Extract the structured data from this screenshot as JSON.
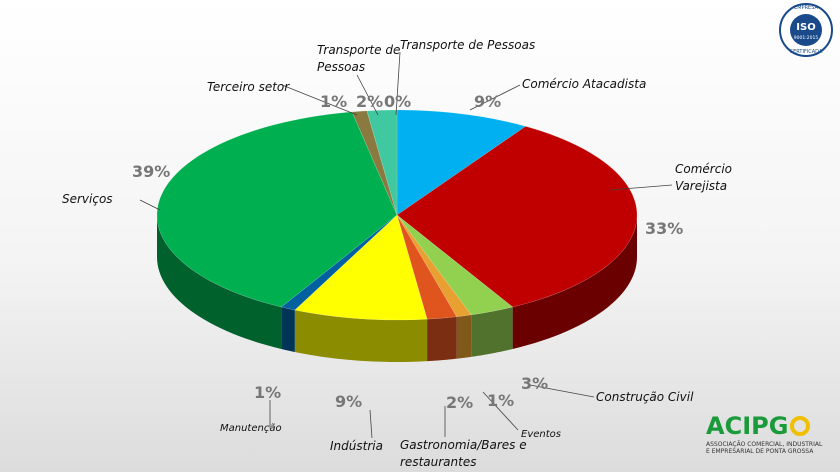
{
  "chart_data": {
    "type": "pie",
    "categories": [
      "Transporte de Pessoas",
      "Comércio Atacadista",
      "Comércio Varejista",
      "Construção Civil",
      "Eventos",
      "Gastronomia/Bares e restaurantes",
      "Indústria",
      "Manutenção",
      "Serviços",
      "Terceiro setor",
      "Transporte de Pessoas"
    ],
    "values": [
      0,
      9,
      33,
      3,
      1,
      2,
      9,
      1,
      39,
      1,
      2
    ],
    "value_labels": [
      "0%",
      "9%",
      "33%",
      "3%",
      "1%",
      "2%",
      "9%",
      "1%",
      "39%",
      "1%",
      "2%"
    ],
    "colors": [
      "#8b4a2a",
      "#00b0f0",
      "#c00000",
      "#92d050",
      "#e8a030",
      "#e0541e",
      "#ffff00",
      "#0060a0",
      "#00b050",
      "#8a7a40",
      "#40c8a0"
    ]
  },
  "logos": {
    "iso_top": "EMPRESA",
    "iso_title": "ISO",
    "iso_standard": "9001:2015",
    "iso_bottom": "CERTIFICADA",
    "acipg_name": "ACIPG",
    "acipg_line1": "ASSOCIAÇÃO COMERCIAL, INDUSTRIAL",
    "acipg_line2": "E EMPRESARIAL DE PONTA GROSSA"
  }
}
